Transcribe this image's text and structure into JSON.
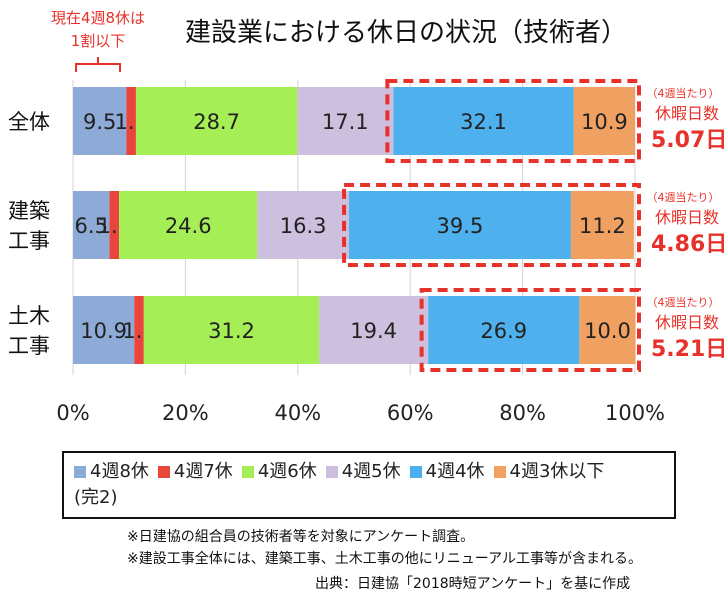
{
  "chart_data": {
    "type": "bar",
    "orientation": "horizontal",
    "stacked": true,
    "percent": true,
    "title": "建設業における休日の状況（技術者）",
    "categories": [
      [
        "全体"
      ],
      [
        "建築",
        "工事"
      ],
      [
        "土木",
        "工事"
      ]
    ],
    "xlim": [
      0,
      100
    ],
    "xticks": [
      "0%",
      "20%",
      "40%",
      "60%",
      "80%",
      "100%"
    ],
    "grid": true,
    "legend_position": "bottom",
    "series": [
      {
        "name": "4週8休",
        "color": "#8eabd8",
        "values": [
          9.5,
          6.5,
          10.9
        ]
      },
      {
        "name": "4週7休",
        "color": "#e8453c",
        "values": [
          1.7,
          1.7,
          1.7
        ]
      },
      {
        "name": "4週6休",
        "color": "#a6ee55",
        "values": [
          28.7,
          24.6,
          31.2
        ]
      },
      {
        "name": "4週5休",
        "color": "#cdc0de",
        "values": [
          17.1,
          16.3,
          19.4
        ]
      },
      {
        "name": "4週4休",
        "color": "#4fb0ee",
        "values": [
          32.1,
          39.5,
          26.9
        ]
      },
      {
        "name": "4週3休以下",
        "color": "#f0a060",
        "values": [
          10.9,
          11.2,
          10.0
        ]
      }
    ],
    "legend_extra": "(完2)",
    "top_annotation": [
      "現在4週8休は",
      "1割以下"
    ],
    "side_annotations": [
      {
        "small": "（4週当たり）",
        "label": "休暇日数",
        "value": "5.07日"
      },
      {
        "small": "（4週当たり）",
        "label": "休暇日数",
        "value": "4.86日"
      },
      {
        "small": "（4週当たり）",
        "label": "休暇日数",
        "value": "5.21日"
      }
    ]
  },
  "footnotes": {
    "note1": "※日建協の組合員の技術者等を対象にアンケート調査。",
    "note2": "※建設工事全体には、建築工事、土木工事の他にリニューアル工事等が含まれる。",
    "source": "出典：日建協「2018時短アンケート」を基に作成"
  },
  "colors": {
    "accent_red": "#e8312a"
  }
}
